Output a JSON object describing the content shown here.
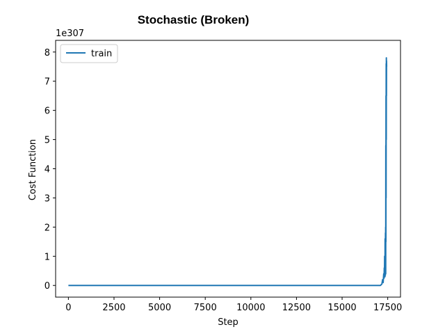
{
  "chart_data": {
    "type": "line",
    "title": "Stochastic (Broken)",
    "xlabel": "Step",
    "ylabel": "Cost Function",
    "y_offset_label": "1e307",
    "xlim": [
      -700,
      18200
    ],
    "ylim": [
      -0.4,
      8.4
    ],
    "x_ticks": [
      0,
      2500,
      5000,
      7500,
      10000,
      12500,
      15000,
      17500
    ],
    "x_tick_labels": [
      "0",
      "2500",
      "5000",
      "7500",
      "10000",
      "12500",
      "15000",
      "17500"
    ],
    "y_ticks": [
      0,
      1,
      2,
      3,
      4,
      5,
      6,
      7,
      8
    ],
    "y_tick_labels": [
      "0",
      "1",
      "2",
      "3",
      "4",
      "5",
      "6",
      "7",
      "8"
    ],
    "grid": false,
    "legend_position": "top-left",
    "series": [
      {
        "name": "train",
        "color": "#1f77b4",
        "x": [
          0,
          2000,
          5000,
          8000,
          11000,
          14000,
          16500,
          17100,
          17180,
          17220,
          17250,
          17280,
          17300,
          17310,
          17320,
          17330,
          17340,
          17345,
          17350,
          17355,
          17360,
          17365,
          17370,
          17375,
          17380,
          17385,
          17390,
          17395,
          17400,
          17405,
          17410,
          17415,
          17420,
          17425,
          17430,
          17435,
          17440
        ],
        "y": [
          0,
          0,
          0,
          0,
          0,
          0,
          0,
          0,
          0.05,
          0.2,
          0.1,
          0.4,
          0.25,
          0.6,
          0.3,
          1.0,
          0.4,
          0.9,
          0.3,
          1.6,
          0.5,
          1.2,
          0.35,
          1.8,
          0.6,
          2.0,
          0.4,
          4.8,
          1.5,
          6.5,
          3.0,
          7.6,
          5.0,
          7.8,
          6.5,
          7.7,
          7.5
        ]
      }
    ]
  }
}
